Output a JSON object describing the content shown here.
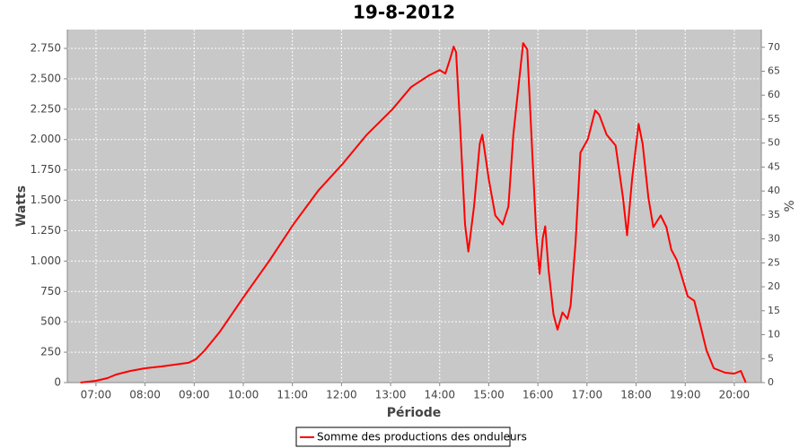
{
  "chart_data": {
    "type": "line",
    "title": "19-8-2012",
    "x_label": "Période",
    "y_label": "Watts",
    "y2_label": "%",
    "x": [
      "06:41",
      "07:00",
      "07:14",
      "07:25",
      "07:42",
      "08:00",
      "08:20",
      "08:37",
      "08:53",
      "09:02",
      "09:13",
      "09:31",
      "10:01",
      "10:32",
      "11:01",
      "11:32",
      "12:02",
      "12:31",
      "13:02",
      "13:25",
      "13:47",
      "14:00",
      "14:07",
      "14:13",
      "14:17",
      "14:20",
      "14:25",
      "14:31",
      "14:35",
      "14:42",
      "14:49",
      "14:52",
      "15:00",
      "15:08",
      "15:17",
      "15:24",
      "15:30",
      "15:37",
      "15:42",
      "15:47",
      "15:52",
      "15:58",
      "16:02",
      "16:06",
      "16:09",
      "16:13",
      "16:19",
      "16:24",
      "16:30",
      "16:36",
      "16:40",
      "16:46",
      "16:52",
      "17:01",
      "17:10",
      "17:15",
      "17:24",
      "17:35",
      "17:44",
      "17:49",
      "17:55",
      "18:03",
      "18:08",
      "18:15",
      "18:21",
      "18:30",
      "18:37",
      "18:43",
      "18:50",
      "19:03",
      "19:11",
      "19:18",
      "19:26",
      "19:35",
      "19:49",
      "20:00",
      "20:08",
      "20:14"
    ],
    "series": [
      {
        "name": "Somme des productions des onduleurs",
        "color": "#ff0000",
        "values": [
          0,
          15,
          37,
          67,
          96,
          118,
          133,
          148,
          163,
          192,
          266,
          414,
          710,
          1005,
          1300,
          1582,
          1804,
          2040,
          2247,
          2432,
          2528,
          2572,
          2543,
          2669,
          2765,
          2720,
          2114,
          1301,
          1079,
          1449,
          1966,
          2040,
          1671,
          1375,
          1301,
          1449,
          2040,
          2484,
          2794,
          2742,
          2040,
          1227,
          894,
          1190,
          1286,
          931,
          562,
          436,
          577,
          525,
          636,
          1153,
          1892,
          2003,
          2240,
          2203,
          2040,
          1951,
          1523,
          1212,
          1671,
          2129,
          1966,
          1523,
          1279,
          1375,
          1279,
          1094,
          1005,
          710,
          673,
          488,
          266,
          118,
          81,
          74,
          96,
          0
        ]
      }
    ],
    "xlim": [
      "06:25",
      "20:33"
    ],
    "xticks": [
      "07:00",
      "08:00",
      "09:00",
      "10:00",
      "11:00",
      "12:00",
      "13:00",
      "14:00",
      "15:00",
      "16:00",
      "17:00",
      "18:00",
      "19:00",
      "20:00"
    ],
    "ylim": [
      0,
      2905
    ],
    "yticks": [
      0,
      250,
      500,
      750,
      {
        "value": 1000,
        "label": "1.000"
      },
      {
        "value": 1250,
        "label": "1.250"
      },
      {
        "value": 1500,
        "label": "1.500"
      },
      {
        "value": 1750,
        "label": "1.750"
      },
      {
        "value": 2000,
        "label": "2.000"
      },
      {
        "value": 2250,
        "label": "2.250"
      },
      {
        "value": 2500,
        "label": "2.500"
      },
      {
        "value": 2750,
        "label": "2.750"
      }
    ],
    "y2lim": [
      0,
      73.7
    ],
    "y2ticks": [
      0,
      5,
      10,
      15,
      20,
      25,
      30,
      35,
      40,
      45,
      50,
      55,
      60,
      65,
      70
    ],
    "grid": true
  }
}
